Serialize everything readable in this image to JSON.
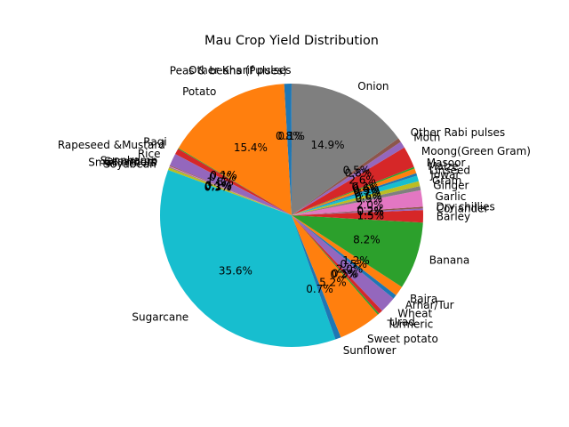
{
  "chart_data": {
    "type": "pie",
    "title": "Mau Crop Yield Distribution",
    "start_angle_deg": 90,
    "direction": "counterclockwise",
    "slices": [
      {
        "label": "Other Kharif pulses",
        "value": 0.1,
        "color": "#1f77b4"
      },
      {
        "label": "Peas & beans (Pulses)",
        "value": 0.8,
        "color": "#1f77b4"
      },
      {
        "label": "Potato",
        "value": 15.4,
        "color": "#ff7f0e"
      },
      {
        "label": "Ragi",
        "value": 0.1,
        "color": "#2ca02c"
      },
      {
        "label": "Rapeseed &Mustard",
        "value": 0.7,
        "color": "#d62728"
      },
      {
        "label": "Rice",
        "value": 1.5,
        "color": "#9467bd"
      },
      {
        "label": "Sannhamp",
        "value": 0.1,
        "color": "#8c564b"
      },
      {
        "label": "Sesamum",
        "value": 0.1,
        "color": "#e377c2"
      },
      {
        "label": "Small millets",
        "value": 0.1,
        "color": "#7f7f7f"
      },
      {
        "label": "Soyabean",
        "value": 0.3,
        "color": "#bcbd22"
      },
      {
        "label": "Sugarcane",
        "value": 35.6,
        "color": "#17becf"
      },
      {
        "label": "Sunflower",
        "value": 0.7,
        "color": "#1f77b4"
      },
      {
        "label": "Sweet potato",
        "value": 5.2,
        "color": "#ff7f0e"
      },
      {
        "label": "Turmeric",
        "value": 0.2,
        "color": "#2ca02c"
      },
      {
        "label": "Urad",
        "value": 0.5,
        "color": "#d62728"
      },
      {
        "label": "Wheat",
        "value": 2.0,
        "color": "#9467bd"
      },
      {
        "label": "Arhar/Tur",
        "value": 0.5,
        "color": "#1f77b4"
      },
      {
        "label": "Bajra",
        "value": 1.2,
        "color": "#ff7f0e"
      },
      {
        "label": "Banana",
        "value": 8.2,
        "color": "#2ca02c"
      },
      {
        "label": "Barley",
        "value": 1.5,
        "color": "#d62728"
      },
      {
        "label": "Coriander",
        "value": 0.2,
        "color": "#9467bd"
      },
      {
        "label": "Dry chillies",
        "value": 0.2,
        "color": "#8c564b"
      },
      {
        "label": "Garlic",
        "value": 2.0,
        "color": "#e377c2"
      },
      {
        "label": "Ginger",
        "value": 0.5,
        "color": "#7f7f7f"
      },
      {
        "label": "Gram",
        "value": 0.6,
        "color": "#bcbd22"
      },
      {
        "label": "Jowar",
        "value": 0.7,
        "color": "#17becf"
      },
      {
        "label": "Linseed",
        "value": 0.3,
        "color": "#1f77b4"
      },
      {
        "label": "Maize",
        "value": 0.6,
        "color": "#ff7f0e"
      },
      {
        "label": "Masoor",
        "value": 0.2,
        "color": "#2ca02c"
      },
      {
        "label": "Moong(Green Gram)",
        "value": 2.6,
        "color": "#d62728"
      },
      {
        "label": "Moth",
        "value": 0.8,
        "color": "#9467bd"
      },
      {
        "label": "Other Rabi pulses",
        "value": 0.5,
        "color": "#8c564b"
      },
      {
        "label": "Onion",
        "value": 14.9,
        "color": "#7f7f7f"
      }
    ],
    "pct_labels": [
      "0.1%",
      "0.8%",
      "15.4%",
      "0.1%",
      "0.7%",
      "1.5%",
      "0.1%",
      "0.1%",
      "0.1%",
      "0.3%",
      "35.6%",
      "0.7%",
      "5.2%",
      "0.2%",
      "0.5%",
      "2.0%",
      "0.5%",
      "1.2%",
      "8.2%",
      "1.5%",
      "0.2%",
      "0.2%",
      "2.0%",
      "0.5%",
      "0.6%",
      "0.7%",
      "0.3%",
      "0.6%",
      "0.2%",
      "2.6%",
      "0.8%",
      "0.5%",
      "14.9%"
    ]
  }
}
